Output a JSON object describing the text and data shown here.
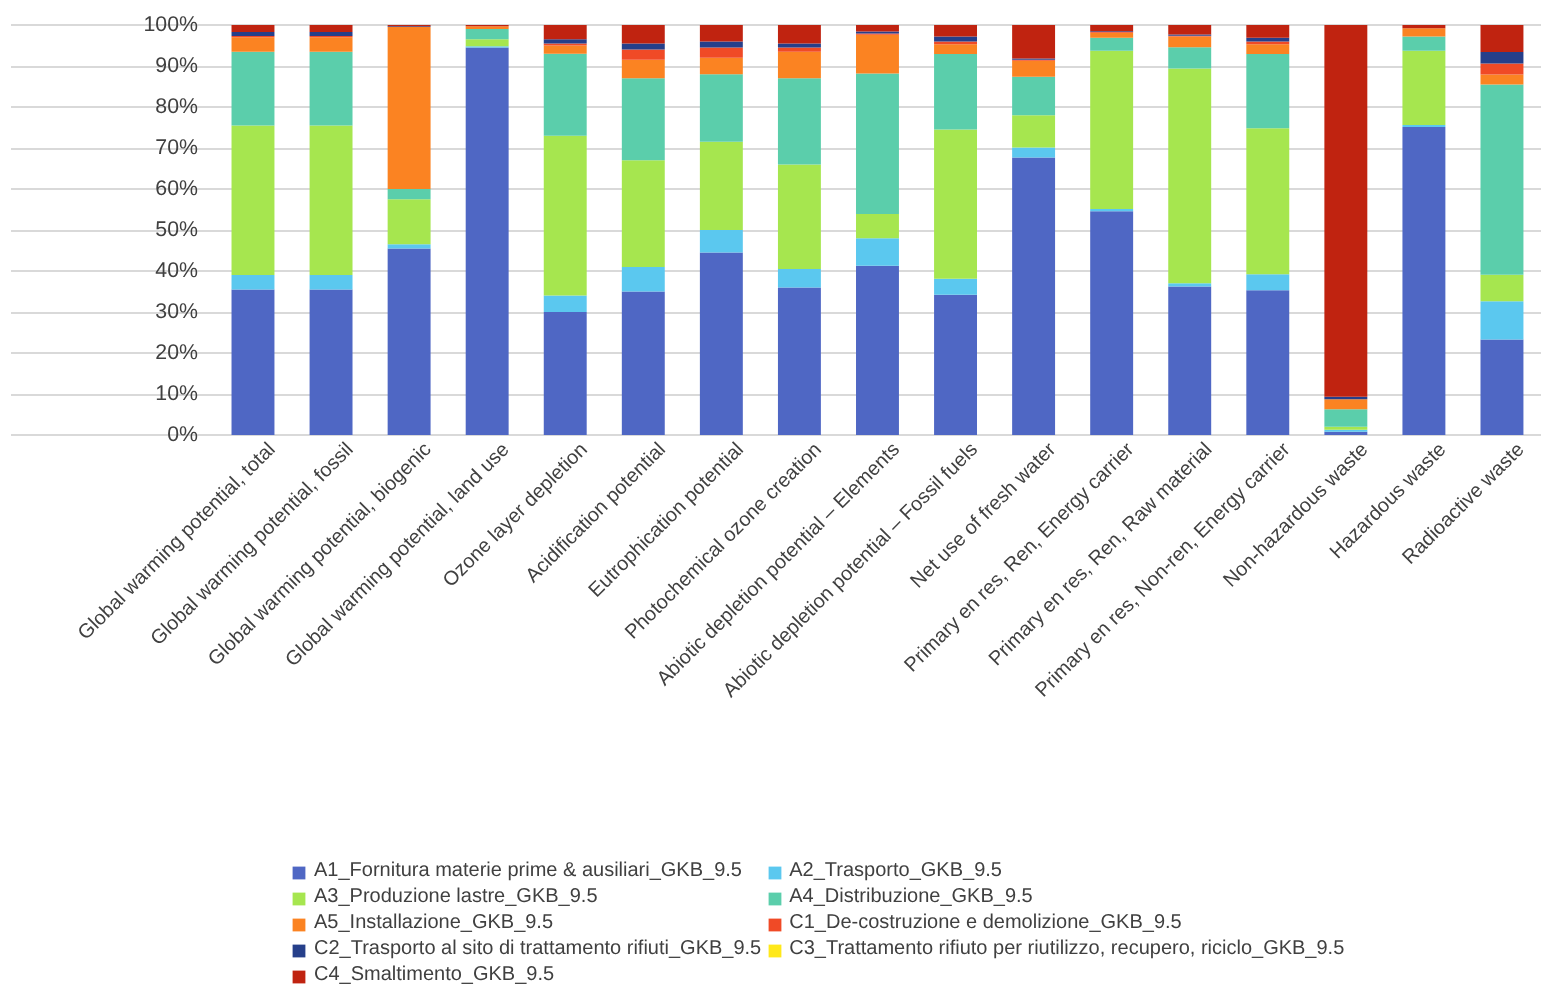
{
  "chart_data": {
    "type": "bar",
    "stacked": true,
    "grid": "y",
    "legend": "bottom",
    "categories": [
      "Global warming potential, total",
      "Global warming potential, fossil",
      "Global warming potential, biogenic",
      "Global warming potential, land use",
      "Ozone layer depletion",
      "Acidification potential",
      "Eutrophication potential",
      "Photochemical ozone creation",
      "Abiotic depletion potential – Elements",
      "Abiotic depletion potential – Fossil fuels",
      "Net use of fresh water",
      "Primary en res, Ren, Energy carrier",
      "Primary en res, Ren, Raw material",
      "Primary en res, Non-ren, Energy carrier",
      "Non-hazardous waste",
      "Hazardous waste",
      "Radioactive waste"
    ],
    "ylim": [
      0,
      100
    ],
    "yticks": [
      {
        "value": 0,
        "label": "0%"
      },
      {
        "value": 10,
        "label": "10%"
      },
      {
        "value": 20,
        "label": "20%"
      },
      {
        "value": 30,
        "label": "30%"
      },
      {
        "value": 40,
        "label": "40%"
      },
      {
        "value": 50,
        "label": "50%"
      },
      {
        "value": 60,
        "label": "60%"
      },
      {
        "value": 70,
        "label": "70%"
      },
      {
        "value": 80,
        "label": "80%"
      },
      {
        "value": 90,
        "label": "90%"
      },
      {
        "value": 100,
        "label": "100%"
      }
    ],
    "series": [
      {
        "name": "A1_Fornitura materie prime & ausiliari_GKB_9.5",
        "color": "#4f67c4",
        "values": [
          35.5,
          35.5,
          45.5,
          94.5,
          30,
          35,
          44.5,
          36,
          41.3,
          34.2,
          67.7,
          54.6,
          36.2,
          35.3,
          0.8,
          75.1,
          23.3
        ]
      },
      {
        "name": "A2_Trasporto_GKB_9.5",
        "color": "#5bc8ef",
        "values": [
          3.5,
          3.5,
          1,
          0.3,
          4,
          6,
          5.5,
          4.5,
          6.7,
          3.9,
          2.4,
          0.5,
          0.8,
          3.9,
          0.5,
          0.5,
          9.3
        ]
      },
      {
        "name": "A3_Produzione lastre_GKB_9.5",
        "color": "#a6e64f",
        "values": [
          36.5,
          36.5,
          11,
          1.7,
          39,
          26,
          21.5,
          25.5,
          5.9,
          36.4,
          7.9,
          38.6,
          52.4,
          35.6,
          0.7,
          18.1,
          6.5
        ]
      },
      {
        "name": "A4_Distribuzione_GKB_9.5",
        "color": "#5bceab",
        "values": [
          18,
          18,
          2.5,
          2.5,
          20,
          20,
          16.5,
          21,
          34.3,
          18.4,
          9.4,
          3.2,
          5.2,
          18.1,
          4.3,
          3.5,
          46.4
        ]
      },
      {
        "name": "A5_Installazione_GKB_9.5",
        "color": "#fb8322",
        "values": [
          3.5,
          3.5,
          39.5,
          0.7,
          2,
          4.5,
          4,
          6.5,
          9.4,
          2.4,
          3.9,
          1.2,
          2.6,
          2.4,
          2.4,
          2,
          2.4
        ]
      },
      {
        "name": "C1_De-costruzione e demolizione_GKB_9.5",
        "color": "#f04a26",
        "values": [
          0.3,
          0.3,
          0,
          0,
          0.5,
          2.5,
          2.5,
          1,
          0.3,
          0.7,
          0.2,
          0.2,
          0.2,
          0.7,
          0,
          0,
          2.7
        ]
      },
      {
        "name": "C2_Trasporto al sito di trattamento rifiuti_GKB_9.5",
        "color": "#263f8a",
        "values": [
          1,
          1,
          0.2,
          0,
          1,
          1.5,
          1.5,
          1,
          0.5,
          1.2,
          0.3,
          0.2,
          0.3,
          0.9,
          0.6,
          0,
          2.8
        ]
      },
      {
        "name": "C3_Trattamento rifiuto per riutilizzo, recupero, riciclo_GKB_9.5",
        "color": "#ffe81a",
        "values": [
          0,
          0,
          0,
          0,
          0,
          0,
          0,
          0,
          0,
          0,
          0,
          0,
          0,
          0,
          0,
          0,
          0
        ]
      },
      {
        "name": "C4_Smaltimento_GKB_9.5",
        "color": "#c02310",
        "values": [
          1.7,
          1.7,
          0.3,
          0.3,
          3.5,
          4.5,
          4,
          4.5,
          1.6,
          2.8,
          8.2,
          1.5,
          2.3,
          3.1,
          90.7,
          0.8,
          6.6
        ]
      }
    ]
  }
}
